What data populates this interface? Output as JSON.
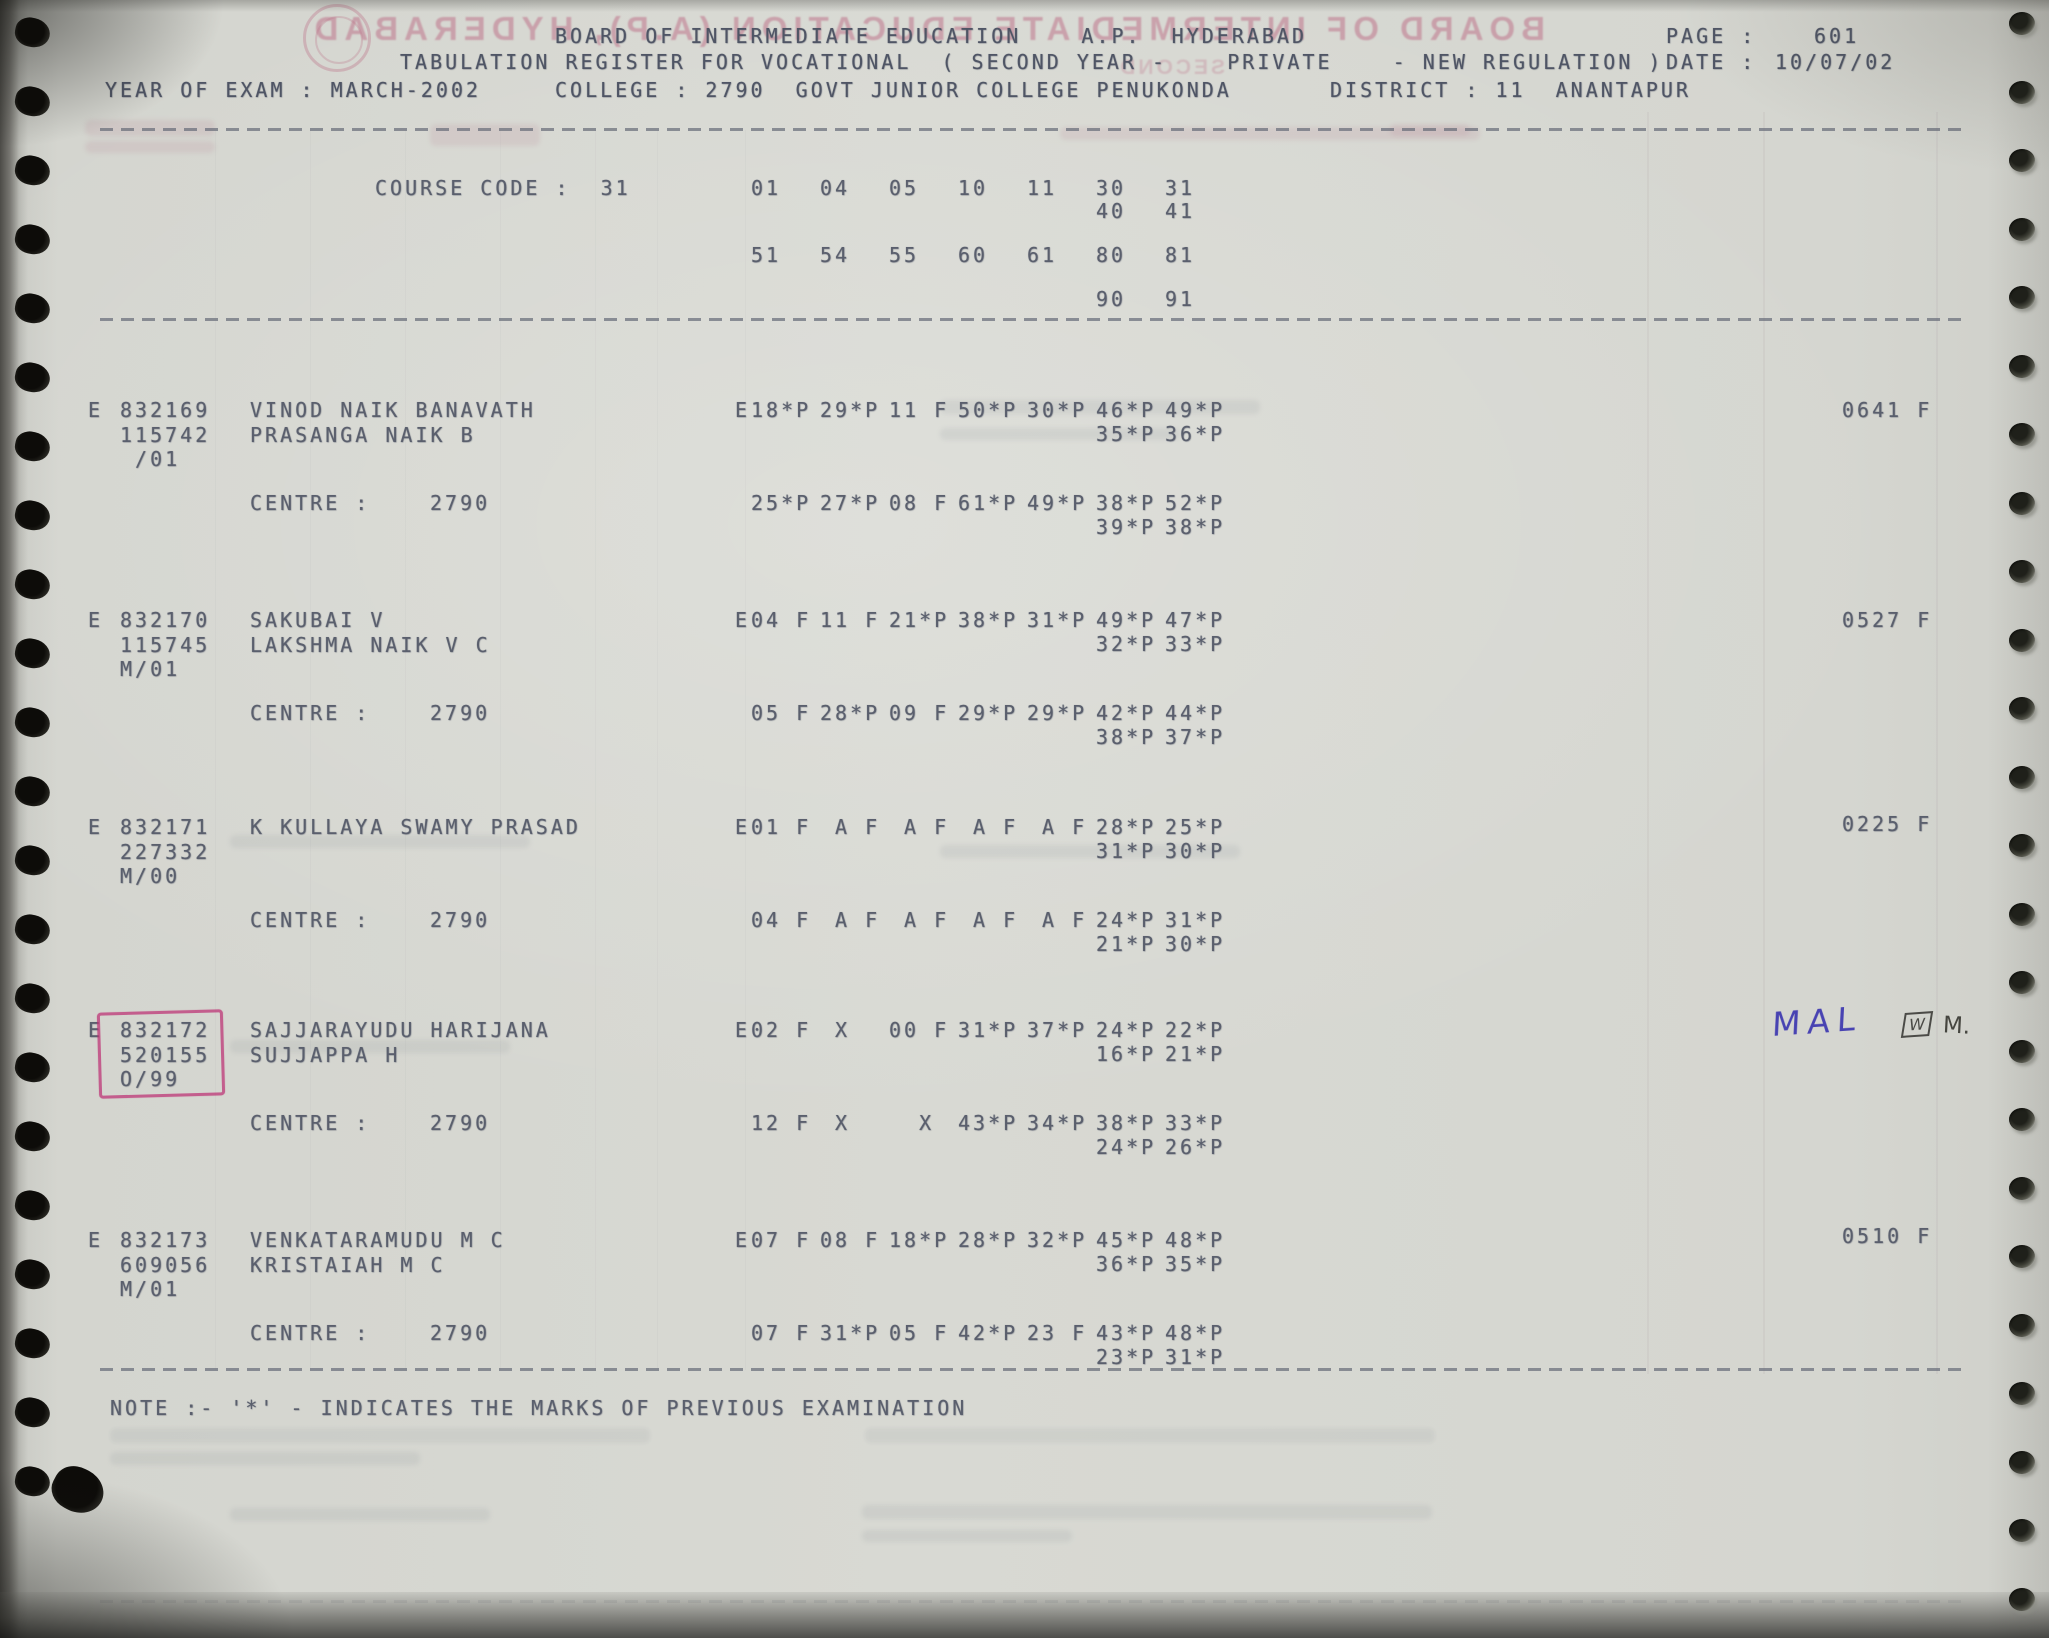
{
  "header": {
    "board_line": "BOARD OF INTERMEDIATE EDUCATION    A.P.  HYDERABAD",
    "register_line": "TABULATION REGISTER FOR VOCATIONAL  ( SECOND YEAR -    PRIVATE    - NEW REGULATION )",
    "page_label": "PAGE :",
    "page_value": "601",
    "date_label": "DATE :",
    "date_value": "10/07/02",
    "year_of_exam": "YEAR OF EXAM : MARCH-2002",
    "college_line": "COLLEGE : 2790  GOVT JUNIOR COLLEGE PENUKONDA",
    "district_line": "DISTRICT : 11  ANANTAPUR"
  },
  "course": {
    "code_line": "COURSE CODE :  31",
    "subjects_row1": [
      "01",
      "04",
      "05",
      "10",
      "11",
      "30",
      "31"
    ],
    "subjects_row2": [
      "40",
      "41"
    ],
    "subjects_row3": [
      "51",
      "54",
      "55",
      "60",
      "61",
      "80",
      "81"
    ],
    "subjects_row4": [
      "90",
      "91"
    ]
  },
  "labels": {
    "centre": "CENTRE :"
  },
  "records": [
    {
      "prefix": "E",
      "reg_no": "832169",
      "prev_no": "115742",
      "session": " /01",
      "name": "VINOD NAIK BANAVATH",
      "father": "PRASANGA NAIK B",
      "medium": "E",
      "centre": "2790",
      "m1": [
        "18*P",
        "29*P",
        "11 F",
        "50*P",
        "30*P",
        "46*P",
        "49*P"
      ],
      "m2": [
        "35*P",
        "36*P"
      ],
      "m3": [
        "25*P",
        "27*P",
        "08 F",
        "61*P",
        "49*P",
        "38*P",
        "52*P"
      ],
      "m4": [
        "39*P",
        "38*P"
      ],
      "total": "0641 F"
    },
    {
      "prefix": "E",
      "reg_no": "832170",
      "prev_no": "115745",
      "session": "M/01",
      "name": "SAKUBAI V",
      "father": "LAKSHMA NAIK V C",
      "medium": "E",
      "centre": "2790",
      "m1": [
        "04 F",
        "11 F",
        "21*P",
        "38*P",
        "31*P",
        "49*P",
        "47*P"
      ],
      "m2": [
        "32*P",
        "33*P"
      ],
      "m3": [
        "05 F",
        "28*P",
        "09 F",
        "29*P",
        "29*P",
        "42*P",
        "44*P"
      ],
      "m4": [
        "38*P",
        "37*P"
      ],
      "total": "0527 F"
    },
    {
      "prefix": "E",
      "reg_no": "832171",
      "prev_no": "227332",
      "session": "M/00",
      "name": "K KULLAYA SWAMY PRASAD",
      "father": "",
      "medium": "E",
      "centre": "2790",
      "m1": [
        "01 F",
        " A F",
        " A F",
        " A F",
        " A F",
        "28*P",
        "25*P"
      ],
      "m2": [
        "31*P",
        "30*P"
      ],
      "m3": [
        "04 F",
        " A F",
        " A F",
        " A F",
        " A F",
        "24*P",
        "31*P"
      ],
      "m4": [
        "21*P",
        "30*P"
      ],
      "total": "0225 F"
    },
    {
      "prefix": "E",
      "reg_no": "832172",
      "prev_no": "520155",
      "session": "O/99",
      "name": "SAJJARAYUDU HARIJANA",
      "father": "SUJJAPPA H",
      "medium": "E",
      "centre": "2790",
      "m1": [
        "02 F",
        " X",
        "00 F",
        "31*P",
        "37*P",
        "24*P",
        "22*P"
      ],
      "m2": [
        "16*P",
        "21*P"
      ],
      "m3": [
        "12 F",
        " X",
        "  X",
        "43*P",
        "34*P",
        "38*P",
        "33*P"
      ],
      "m4": [
        "24*P",
        "26*P"
      ],
      "total": ""
    },
    {
      "prefix": "E",
      "reg_no": "832173",
      "prev_no": "609056",
      "session": "M/01",
      "name": "VENKATARAMUDU M C",
      "father": "KRISTAIAH M C",
      "medium": "E",
      "centre": "2790",
      "m1": [
        "07 F",
        "08 F",
        "18*P",
        "28*P",
        "32*P",
        "45*P",
        "48*P"
      ],
      "m2": [
        "36*P",
        "35*P"
      ],
      "m3": [
        "07 F",
        "31*P",
        "05 F",
        "42*P",
        "23 F",
        "43*P",
        "48*P"
      ],
      "m4": [
        "23*P",
        "31*P"
      ],
      "total": "0510 F"
    }
  ],
  "note_line": "NOTE :- '*' - INDICATES THE MARKS OF PREVIOUS EXAMINATION",
  "handwriting": {
    "mal": "MAL",
    "w_box": "W",
    "m_note": "M."
  },
  "ghost": {
    "board_mirror": "BOARD OF INTERMEDIATE EDUCATION (A.P), HYDERABAD",
    "second_mirror": "SECOND"
  },
  "ink": {
    "print": "#5a5f6d",
    "handwriting_blue": "#4843b2",
    "check_pink": "#bd2f73",
    "paper": "#d5d6d0"
  }
}
